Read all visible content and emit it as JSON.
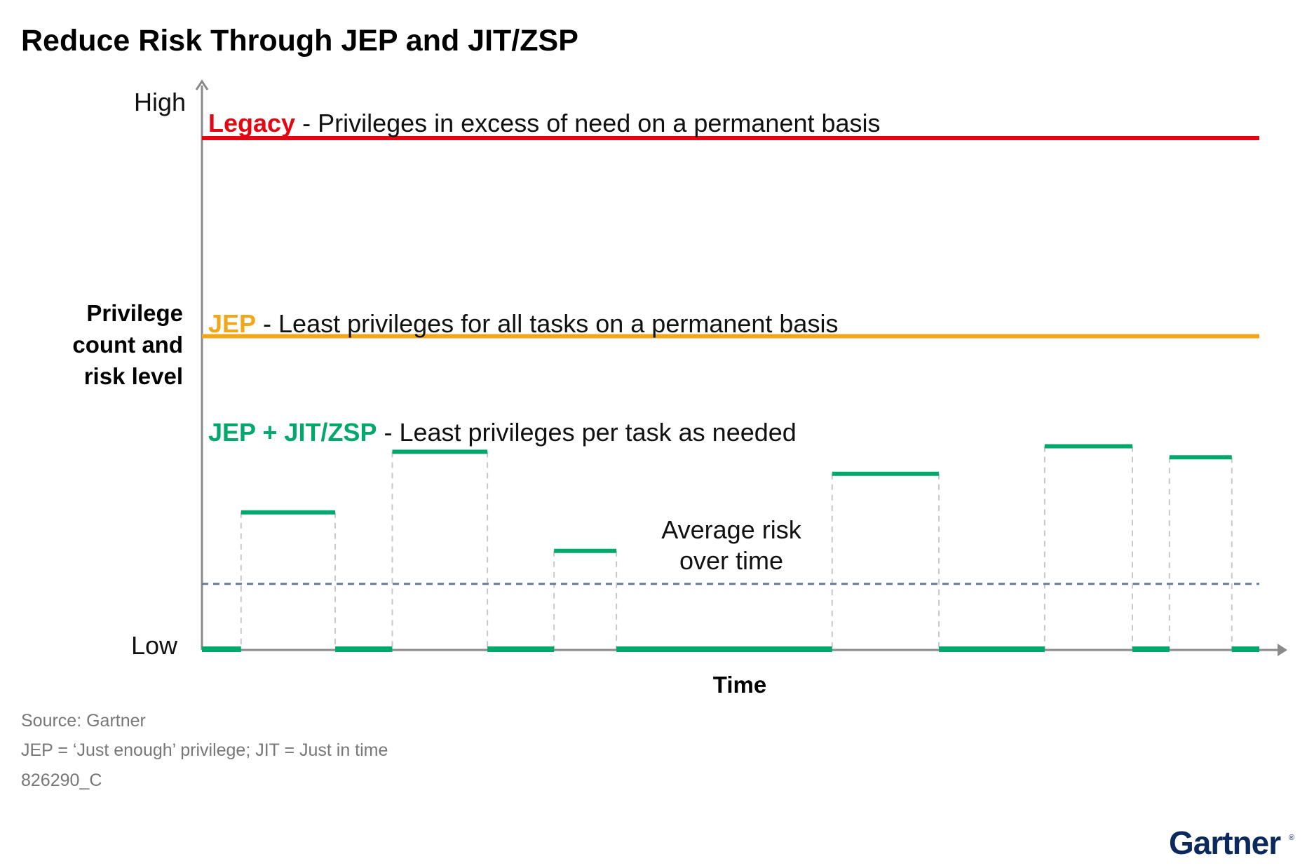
{
  "colors": {
    "legacy": "#e30613",
    "jep": "#f2a71b",
    "jit": "#00a86b",
    "average": "#6b7a99",
    "axis": "#8a8a8a",
    "guide": "#c8c8c8"
  },
  "chart_data": {
    "type": "line",
    "title": "Reduce Risk Through JEP and JIT/ZSP",
    "ylabel_lines": [
      "Privilege",
      "count and",
      "risk level"
    ],
    "xlabel": "Time",
    "y_high_label": "High",
    "y_low_label": "Low",
    "xlim": [
      0,
      100
    ],
    "ylim": [
      0,
      100
    ],
    "series": [
      {
        "key": "legacy",
        "name": "Legacy",
        "description": " - Privileges in excess of need on a permanent basis",
        "kind": "constant",
        "value": 93
      },
      {
        "key": "jep",
        "name": "JEP",
        "description": " - Least privileges for all tasks on a permanent basis",
        "kind": "constant",
        "value": 57
      },
      {
        "key": "jit",
        "name": "JEP + JIT/ZSP",
        "description": " - Least privileges per task as needed",
        "kind": "step",
        "segments": [
          {
            "x0": 0,
            "x1": 3.7,
            "value": 0
          },
          {
            "x0": 3.7,
            "x1": 12.6,
            "value": 25
          },
          {
            "x0": 12.6,
            "x1": 18.0,
            "value": 0
          },
          {
            "x0": 18.0,
            "x1": 27.0,
            "value": 36
          },
          {
            "x0": 27.0,
            "x1": 33.3,
            "value": 0
          },
          {
            "x0": 33.3,
            "x1": 39.2,
            "value": 18
          },
          {
            "x0": 39.2,
            "x1": 59.6,
            "value": 0
          },
          {
            "x0": 59.6,
            "x1": 69.7,
            "value": 32
          },
          {
            "x0": 69.7,
            "x1": 79.7,
            "value": 0
          },
          {
            "x0": 79.7,
            "x1": 88.0,
            "value": 37
          },
          {
            "x0": 88.0,
            "x1": 91.5,
            "value": 0
          },
          {
            "x0": 91.5,
            "x1": 97.4,
            "value": 35
          },
          {
            "x0": 97.4,
            "x1": 100,
            "value": 0
          }
        ]
      },
      {
        "key": "average",
        "name": "Average risk over time",
        "kind": "constant-dashed",
        "value": 12
      }
    ],
    "annotation_lines": [
      "Average risk",
      "over time"
    ]
  },
  "footer": {
    "source": "Source: Gartner",
    "note": "JEP = ‘Just enough’ privilege; JIT = Just in time",
    "code": "826290_C"
  },
  "logo": {
    "text": "Gartner"
  }
}
